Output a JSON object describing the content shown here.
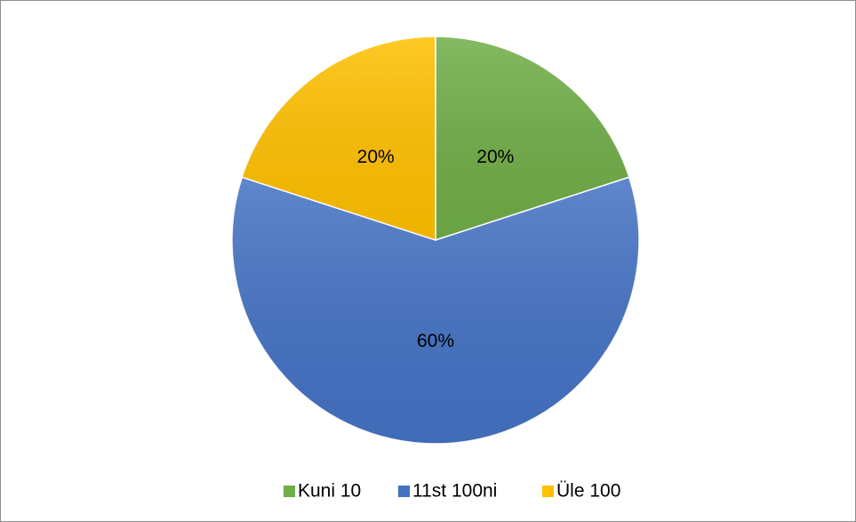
{
  "chart_data": {
    "type": "pie",
    "categories": [
      "Kuni 10",
      "11st 100ni",
      "Üle 100"
    ],
    "values": [
      20,
      60,
      20
    ],
    "value_labels": [
      "20%",
      "60%",
      "20%"
    ],
    "colors": [
      "#70ad47",
      "#4472c4",
      "#ffc000"
    ],
    "legend": "bottom"
  }
}
